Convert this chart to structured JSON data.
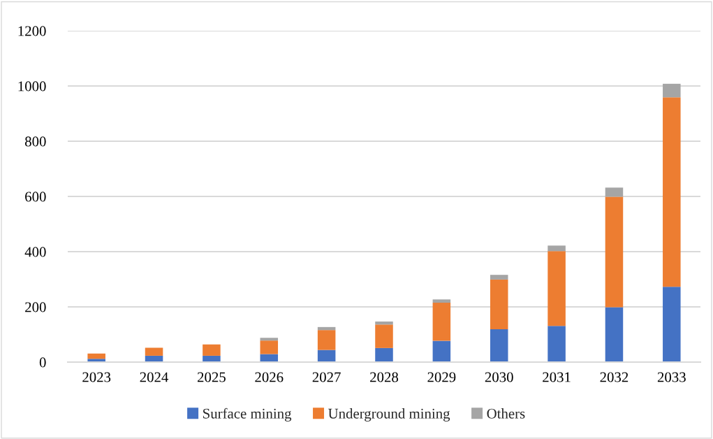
{
  "chart_data": {
    "type": "bar",
    "stacked": true,
    "categories": [
      "2023",
      "2024",
      "2025",
      "2026",
      "2027",
      "2028",
      "2029",
      "2030",
      "2031",
      "2032",
      "2033"
    ],
    "series": [
      {
        "name": "Surface mining",
        "color": "#4472c4",
        "values": [
          12,
          23,
          23,
          29,
          44,
          51,
          77,
          119,
          131,
          199,
          273
        ]
      },
      {
        "name": "Underground mining",
        "color": "#ed7d31",
        "values": [
          19,
          29,
          41,
          49,
          72,
          85,
          138,
          180,
          271,
          400,
          686
        ]
      },
      {
        "name": "Others",
        "color": "#a5a5a5",
        "values": [
          0,
          0,
          0,
          10,
          11,
          11,
          12,
          17,
          20,
          33,
          49
        ]
      }
    ],
    "ylim": [
      0,
      1200
    ],
    "yticks": [
      0,
      200,
      400,
      600,
      800,
      1000,
      1200
    ],
    "grid": "y",
    "legend": "bottom"
  }
}
